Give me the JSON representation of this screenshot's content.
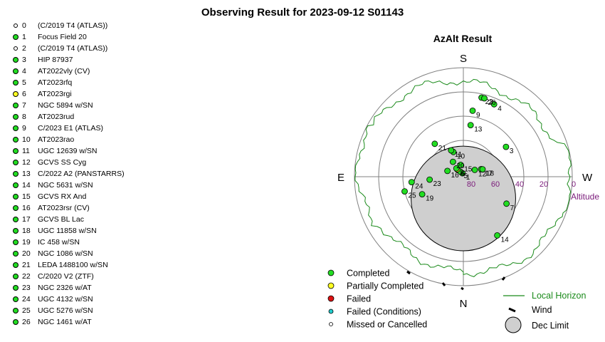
{
  "title": "Observing Result for 2023-09-12 S01143",
  "status_colors": {
    "completed": "#22dd22",
    "partial": "#ffff22",
    "failed": "#dd1111",
    "failed_conditions": "#22cccc",
    "missed": "#ffffff"
  },
  "targets": [
    {
      "num": "0",
      "name": " (C/2019 T4 (ATLAS))",
      "status": "missed"
    },
    {
      "num": "1",
      "name": "Focus Field 20",
      "status": "completed"
    },
    {
      "num": "2",
      "name": " (C/2019 T4 (ATLAS))",
      "status": "missed"
    },
    {
      "num": "3",
      "name": "HIP 87937",
      "status": "completed"
    },
    {
      "num": "4",
      "name": "AT2022vly (CV)",
      "status": "completed"
    },
    {
      "num": "5",
      "name": "AT2023rfq",
      "status": "completed"
    },
    {
      "num": "6",
      "name": "AT2023rgi",
      "status": "partial"
    },
    {
      "num": "7",
      "name": "NGC 5894 w/SN",
      "status": "completed"
    },
    {
      "num": "8",
      "name": "AT2023rud",
      "status": "completed"
    },
    {
      "num": "9",
      "name": "C/2023 E1 (ATLAS)",
      "status": "completed"
    },
    {
      "num": "10",
      "name": "AT2023rao",
      "status": "completed"
    },
    {
      "num": "11",
      "name": "UGC 12639 w/SN",
      "status": "completed"
    },
    {
      "num": "12",
      "name": "GCVS SS Cyg",
      "status": "completed"
    },
    {
      "num": "13",
      "name": "C/2022 A2 (PANSTARRS)",
      "status": "completed"
    },
    {
      "num": "14",
      "name": "NGC 5631 w/SN",
      "status": "completed"
    },
    {
      "num": "15",
      "name": "GCVS RX And",
      "status": "completed"
    },
    {
      "num": "16",
      "name": "AT2023rsr (CV)",
      "status": "completed"
    },
    {
      "num": "17",
      "name": "GCVS BL Lac",
      "status": "completed"
    },
    {
      "num": "18",
      "name": "UGC 11858 w/SN",
      "status": "completed"
    },
    {
      "num": "19",
      "name": "IC 458 w/SN",
      "status": "completed"
    },
    {
      "num": "20",
      "name": "NGC 1086 w/SN",
      "status": "completed"
    },
    {
      "num": "21",
      "name": "LEDA 1488100 w/SN",
      "status": "completed"
    },
    {
      "num": "22",
      "name": "C/2020 V2 (ZTF)",
      "status": "completed"
    },
    {
      "num": "23",
      "name": "NGC 2326 w/AT",
      "status": "completed"
    },
    {
      "num": "24",
      "name": "UGC 4132 w/SN",
      "status": "completed"
    },
    {
      "num": "25",
      "name": "UGC 5276 w/SN",
      "status": "completed"
    },
    {
      "num": "26",
      "name": "NGC 1461 w/AT",
      "status": "completed"
    }
  ],
  "chart_data": {
    "type": "scatter",
    "projection": "polar-azimuth-altitude",
    "title": "AzAlt Result",
    "cardinals": {
      "top": "S",
      "bottom": "N",
      "left": "E",
      "right": "W"
    },
    "altitude_rings": [
      80,
      60,
      40,
      20,
      0
    ],
    "altitude_tick_labels": [
      "80",
      "60",
      "40",
      "20",
      "0"
    ],
    "altitude_axis_label": "Altitude",
    "points": [
      {
        "label": "1",
        "az": 165,
        "alt": 87,
        "status": "completed"
      },
      {
        "label": "3",
        "az": 235,
        "alt": 47,
        "status": "completed"
      },
      {
        "label": "4",
        "az": 203,
        "alt": 25,
        "status": "completed"
      },
      {
        "label": "5",
        "az": 148,
        "alt": 85,
        "status": "completed"
      },
      {
        "label": "6",
        "az": 140,
        "alt": 82,
        "status": "partial"
      },
      {
        "label": "7",
        "az": 302,
        "alt": 48,
        "status": "completed"
      },
      {
        "label": "8",
        "az": 140,
        "alt": 81,
        "status": "completed"
      },
      {
        "label": "9",
        "az": 188,
        "alt": 35,
        "status": "completed"
      },
      {
        "label": "10",
        "az": 158,
        "alt": 68,
        "status": "completed"
      },
      {
        "label": "11",
        "az": 155,
        "alt": 66,
        "status": "completed"
      },
      {
        "label": "12",
        "az": 239,
        "alt": 79,
        "status": "completed"
      },
      {
        "label": "13",
        "az": 188,
        "alt": 47,
        "status": "completed"
      },
      {
        "label": "14",
        "az": 330,
        "alt": 34,
        "status": "completed"
      },
      {
        "label": "15",
        "az": 167,
        "alt": 80,
        "status": "completed"
      },
      {
        "label": "16",
        "az": 110,
        "alt": 76,
        "status": "completed"
      },
      {
        "label": "17",
        "az": 247,
        "alt": 74,
        "status": "completed"
      },
      {
        "label": "18",
        "az": 249,
        "alt": 73,
        "status": "completed"
      },
      {
        "label": "19",
        "az": 67,
        "alt": 53,
        "status": "completed"
      },
      {
        "label": "20",
        "az": 145,
        "alt": 75,
        "status": "completed"
      },
      {
        "label": "21",
        "az": 139,
        "alt": 54,
        "status": "completed"
      },
      {
        "label": "22",
        "az": 193,
        "alt": 23,
        "status": "completed"
      },
      {
        "label": "23",
        "az": 85,
        "alt": 62,
        "status": "completed"
      },
      {
        "label": "24",
        "az": 84,
        "alt": 47,
        "status": "completed"
      },
      {
        "label": "25",
        "az": 76,
        "alt": 40,
        "status": "completed"
      },
      {
        "label": "26",
        "az": 195,
        "alt": 23,
        "status": "completed"
      }
    ],
    "dec_limit": {
      "az": 0,
      "alt": 72,
      "radius_deg": 16
    },
    "legend": [
      {
        "key": "completed",
        "label": "Completed"
      },
      {
        "key": "partial",
        "label": "Partially Completed"
      },
      {
        "key": "failed",
        "label": "Failed"
      },
      {
        "key": "failed_conditions",
        "label": "Failed (Conditions)"
      },
      {
        "key": "missed",
        "label": "Missed or Cancelled"
      }
    ],
    "legend_right": {
      "horizon": "Local Horizon",
      "wind": "Wind",
      "dec_limit": "Dec Limit"
    },
    "colors": {
      "horizon": "#1a8a1a",
      "ring": "#808080",
      "altitude_labels": "#7a1a7a",
      "dec_limit_fill": "#cfcfcf"
    }
  }
}
